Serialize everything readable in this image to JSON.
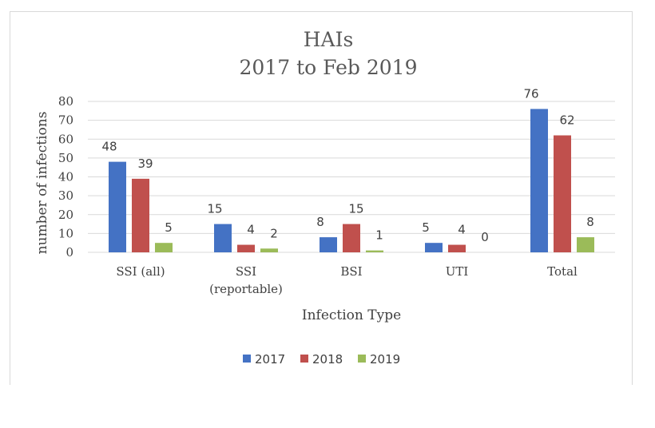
{
  "chart_data": {
    "type": "bar",
    "title": [
      "HAIs",
      "2017 to Feb 2019"
    ],
    "xlabel": "Infection Type",
    "ylabel": "number of infections",
    "ylim": [
      0,
      80
    ],
    "yticks": [
      "0",
      "10",
      "20",
      "30",
      "40",
      "50",
      "60",
      "70",
      "80"
    ],
    "categories": [
      [
        "SSI (all)"
      ],
      [
        "SSI",
        "(reportable)"
      ],
      [
        "BSI"
      ],
      [
        "UTI"
      ],
      [
        "Total"
      ]
    ],
    "series": [
      {
        "name": "2017",
        "color": "#4472c4",
        "values": [
          48,
          15,
          8,
          5,
          76
        ]
      },
      {
        "name": "2018",
        "color": "#c0504d",
        "values": [
          39,
          4,
          15,
          4,
          62
        ]
      },
      {
        "name": "2019",
        "color": "#9bbb59",
        "values": [
          5,
          2,
          1,
          0,
          8
        ]
      }
    ],
    "grid": true,
    "legend": "bottom"
  }
}
